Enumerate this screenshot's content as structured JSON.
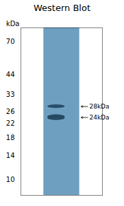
{
  "chart_data": {
    "type": "blot",
    "title": "Western Blot",
    "y_label": "kDa",
    "values": [
      28.0,
      24.0
    ],
    "heights": [
      1.4,
      1.9
    ],
    "value_labels": [
      "28kDa",
      "24kDa"
    ],
    "data_labels": true,
    "colors": [
      "#1c3f5a",
      "#1a3a52"
    ],
    "color": "#6f9fc0",
    "log": "y",
    "ylim": [
      8,
      85
    ],
    "yticks": [
      70,
      44,
      33,
      26,
      22,
      18,
      14,
      10
    ],
    "tick_labels": "y",
    "grid": false
  }
}
